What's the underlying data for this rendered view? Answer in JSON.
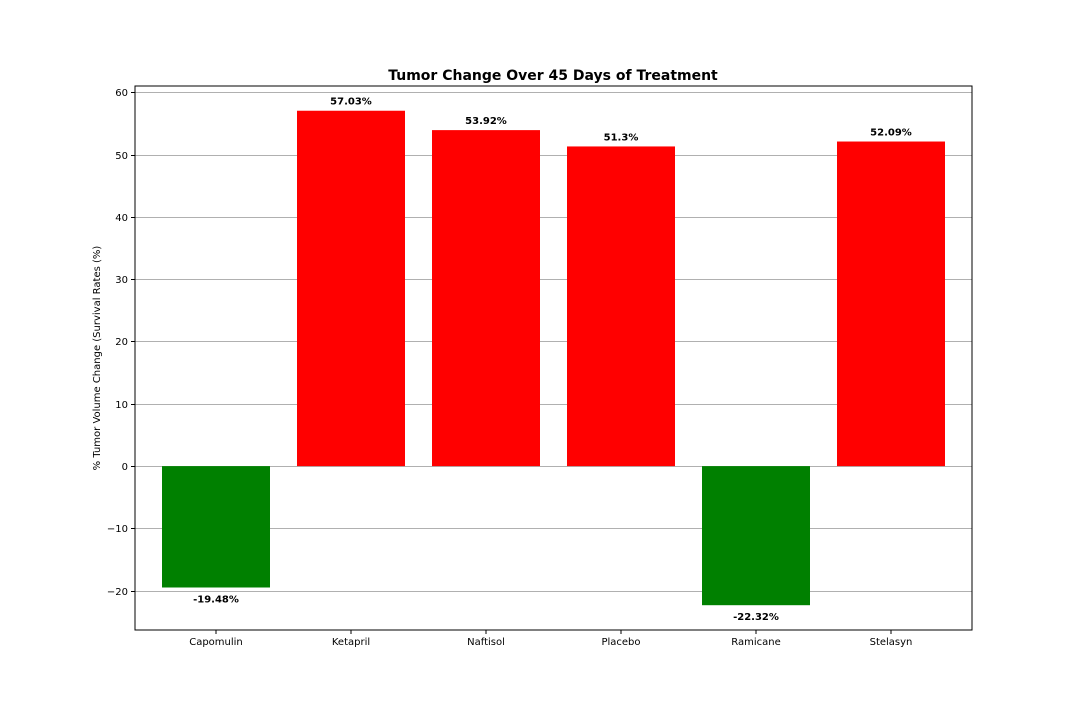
{
  "chart_data": {
    "type": "bar",
    "title": "Tumor Change Over 45 Days of Treatment",
    "xlabel": "",
    "ylabel": "% Tumor Volume Change (Survival Rates (%)",
    "categories": [
      "Capomulin",
      "Ketapril",
      "Naftisol",
      "Placebo",
      "Ramicane",
      "Stelasyn"
    ],
    "values": [
      -19.48,
      57.03,
      53.92,
      51.3,
      -22.32,
      52.09
    ],
    "data_labels": [
      "-19.48%",
      "57.03%",
      "53.92%",
      "51.3%",
      "-22.32%",
      "52.09%"
    ],
    "ylim": [
      -26.3,
      61.0
    ],
    "yticks": [
      -20,
      -10,
      0,
      10,
      20,
      30,
      40,
      50,
      60
    ],
    "ytick_labels": [
      "−20",
      "−10",
      "0",
      "10",
      "20",
      "30",
      "40",
      "50",
      "60"
    ],
    "grid": "horizontal",
    "colors": {
      "positive": "#ff0000",
      "negative": "#008000",
      "grid": "#b0b0b0",
      "axis": "#000000"
    }
  }
}
